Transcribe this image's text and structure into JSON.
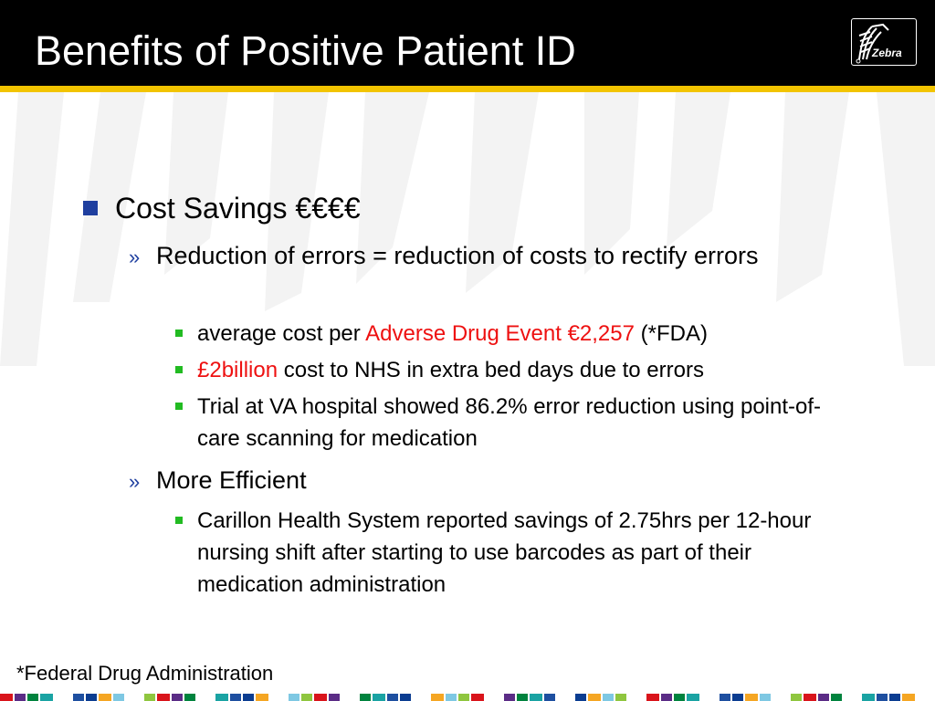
{
  "slide": {
    "title": "Benefits of Positive Patient ID",
    "logo_text": "Zebra",
    "colors": {
      "header_background": "#000000",
      "header_rule": "#f2c400",
      "primary_bullet": "#1f3f9f",
      "tertiary_bullet": "#22bb22",
      "highlight_text": "#ee1111"
    }
  },
  "content": {
    "heading": "Cost Savings €€€€",
    "section1": {
      "marker": "»",
      "text": "Reduction of errors = reduction of costs to rectify errors",
      "items": [
        {
          "prefix": "average cost per ",
          "highlight": "Adverse Drug Event €2,257",
          "suffix": " (*FDA)"
        },
        {
          "prefix": "",
          "highlight": "£2billion",
          "suffix": " cost to NHS in extra bed days due to errors"
        },
        {
          "text": "Trial at VA hospital showed 86.2% error reduction using point-of-care scanning for medication"
        }
      ]
    },
    "section2": {
      "marker": "»",
      "text": "More Efficient",
      "items": [
        {
          "text": "Carillon Health System reported savings of 2.75hrs per 12-hour nursing shift after starting to use barcodes as part of their medication administration"
        }
      ]
    }
  },
  "footnote": "*Federal Drug Administration",
  "bottom_strip_colors": [
    "#d9141b",
    "#00833e",
    "#1e4fa0",
    "#f5a623",
    "#8fc63f",
    "#5b2c86",
    "#1aa3a3",
    "#0b3d91",
    "#7ec8e3"
  ]
}
